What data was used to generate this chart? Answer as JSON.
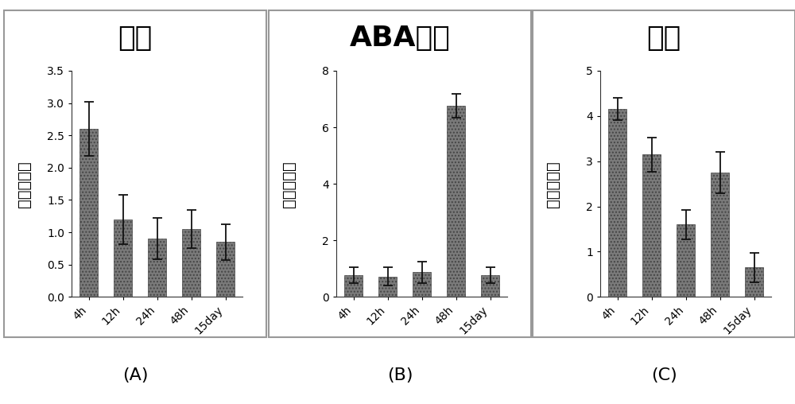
{
  "panels": [
    {
      "title": "高盐",
      "title_weight": "normal",
      "categories": [
        "4h",
        "12h",
        "24h",
        "48h",
        "15day"
      ],
      "values": [
        2.6,
        1.2,
        0.9,
        1.05,
        0.85
      ],
      "errors": [
        0.42,
        0.38,
        0.32,
        0.3,
        0.28
      ],
      "ylim": [
        0,
        3.5
      ],
      "yticks": [
        0,
        0.5,
        1.0,
        1.5,
        2.0,
        2.5,
        3.0,
        3.5
      ],
      "label": "(A)"
    },
    {
      "title": "ABA处理",
      "title_weight": "bold",
      "categories": [
        "4h",
        "12h",
        "24h",
        "48h",
        "15day"
      ],
      "values": [
        0.78,
        0.72,
        0.88,
        6.75,
        0.78
      ],
      "errors": [
        0.28,
        0.32,
        0.38,
        0.42,
        0.28
      ],
      "ylim": [
        0,
        8
      ],
      "yticks": [
        0,
        2,
        4,
        6,
        8
      ],
      "label": "(B)"
    },
    {
      "title": "干旱",
      "title_weight": "normal",
      "categories": [
        "4h",
        "12h",
        "24h",
        "48h",
        "15day"
      ],
      "values": [
        4.15,
        3.15,
        1.6,
        2.75,
        0.65
      ],
      "errors": [
        0.25,
        0.38,
        0.32,
        0.45,
        0.32
      ],
      "ylim": [
        0,
        5
      ],
      "yticks": [
        0,
        1,
        2,
        3,
        4,
        5
      ],
      "label": "(C)"
    }
  ],
  "bar_color": "#7a7a7a",
  "bar_edgecolor": "#444444",
  "ylabel": "相对表达量",
  "bg_color": "#ffffff",
  "axes_bg_color": "#ffffff",
  "title_fontsize": 26,
  "tick_fontsize": 10,
  "ylabel_fontsize": 14,
  "label_fontsize": 16,
  "bar_width": 0.55,
  "panel_border_color": "#999999",
  "panel_border_lw": 1.5
}
